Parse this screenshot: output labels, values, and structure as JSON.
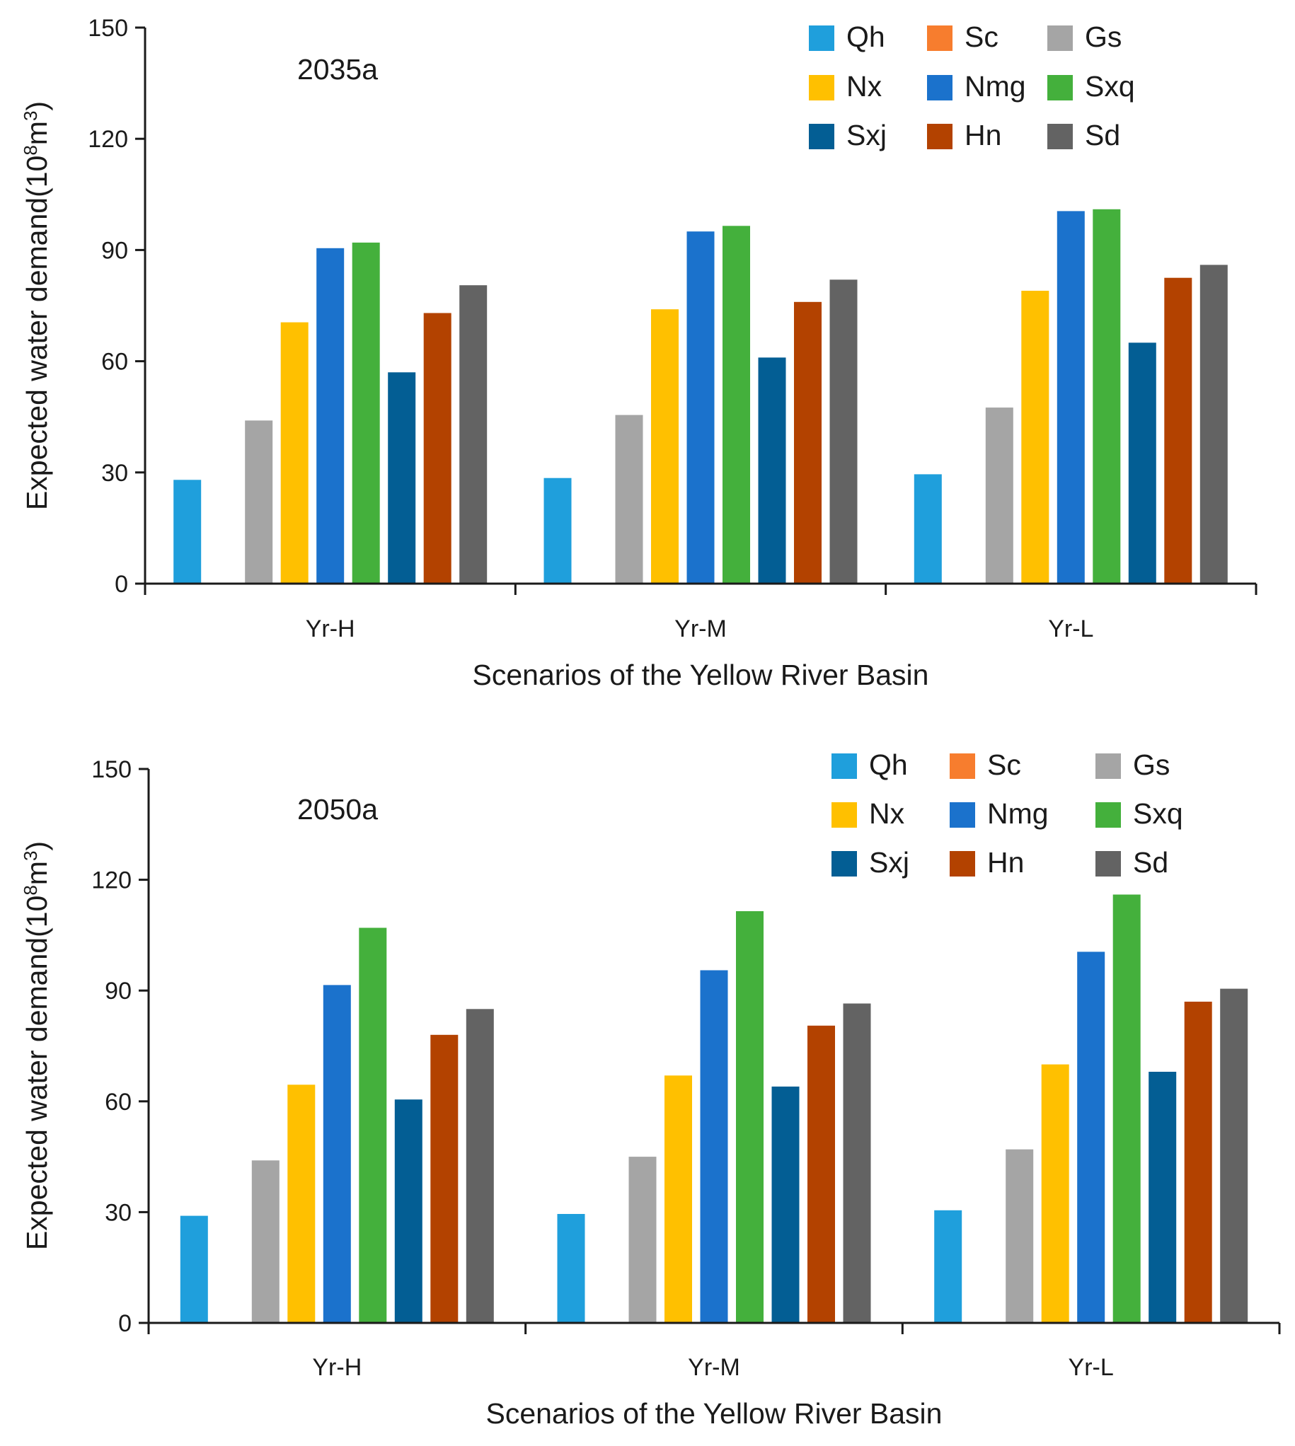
{
  "chart_data": [
    {
      "type": "bar",
      "title": "2035a",
      "xlabel": "Scenarios of  the Yellow River Basin",
      "ylabel_main": "Expected water demand(10",
      "ylabel_sup1": "8",
      "ylabel_mid": "m",
      "ylabel_sup2": "3",
      "ylabel_end": ")",
      "ylim": [
        0,
        150
      ],
      "yticks": [
        "0",
        "30",
        "60",
        "90",
        "120",
        "150"
      ],
      "ytick_values": [
        0,
        30,
        60,
        90,
        120,
        150
      ],
      "categories": [
        "Yr-H",
        "Yr-M",
        "Yr-L"
      ],
      "series": [
        {
          "name": "Qh",
          "values": [
            28,
            28.5,
            29.5
          ]
        },
        {
          "name": "Sc",
          "values": [
            0,
            0,
            0
          ]
        },
        {
          "name": "Gs",
          "values": [
            44,
            45.5,
            47.5
          ]
        },
        {
          "name": "Nx",
          "values": [
            70.5,
            74,
            79
          ]
        },
        {
          "name": "Nmg",
          "values": [
            90.5,
            95,
            100.5
          ]
        },
        {
          "name": "Sxq",
          "values": [
            92,
            96.5,
            101
          ]
        },
        {
          "name": "Sxj",
          "values": [
            57,
            61,
            65
          ]
        },
        {
          "name": "Hn",
          "values": [
            73,
            76,
            82.5
          ]
        },
        {
          "name": "Sd",
          "values": [
            80.5,
            82,
            86
          ]
        }
      ],
      "legend": [
        "Qh",
        "Sc",
        "Gs",
        "Nx",
        "Nmg",
        "Sxq",
        "Sxj",
        "Hn",
        "Sd"
      ],
      "legend_position": "top-right"
    },
    {
      "type": "bar",
      "title": "2050a",
      "xlabel": "Scenarios of the Yellow River Basin",
      "ylabel_main": "Expected water demand(10",
      "ylabel_sup1": "8",
      "ylabel_mid": "m",
      "ylabel_sup2": "3",
      "ylabel_end": ")",
      "ylim": [
        0,
        150
      ],
      "yticks": [
        "0",
        "30",
        "60",
        "90",
        "120",
        "150"
      ],
      "ytick_values": [
        0,
        30,
        60,
        90,
        120,
        150
      ],
      "categories": [
        "Yr-H",
        "Yr-M",
        "Yr-L"
      ],
      "series": [
        {
          "name": "Qh",
          "values": [
            29,
            29.5,
            30.5
          ]
        },
        {
          "name": "Sc",
          "values": [
            0,
            0,
            0
          ]
        },
        {
          "name": "Gs",
          "values": [
            44,
            45,
            47
          ]
        },
        {
          "name": "Nx",
          "values": [
            64.5,
            67,
            70
          ]
        },
        {
          "name": "Nmg",
          "values": [
            91.5,
            95.5,
            100.5
          ]
        },
        {
          "name": "Sxq",
          "values": [
            107,
            111.5,
            116
          ]
        },
        {
          "name": "Sxj",
          "values": [
            60.5,
            64,
            68
          ]
        },
        {
          "name": "Hn",
          "values": [
            78,
            80.5,
            87
          ]
        },
        {
          "name": "Sd",
          "values": [
            85,
            86.5,
            90.5
          ]
        }
      ],
      "legend": [
        "Qh",
        "Sc",
        "Gs",
        "Nx",
        "Nmg",
        "Sxq",
        "Sxj",
        "Hn",
        "Sd"
      ],
      "legend_position": "top-right"
    }
  ],
  "colors": {
    "Qh": "#1f9fdc",
    "Sc": "#f77d2e",
    "Gs": "#a5a5a5",
    "Nx": "#ffc000",
    "Nmg": "#1b72cc",
    "Sxq": "#44b03c",
    "Sxj": "#035e94",
    "Hn": "#b34200",
    "Sd": "#636363",
    "axis": "#1a1a1a"
  }
}
